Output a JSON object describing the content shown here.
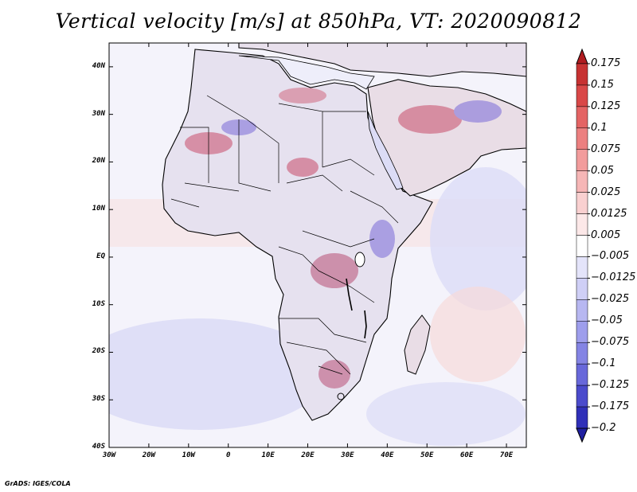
{
  "title": "Vertical velocity [m/s] at 850hPa, VT: 2020090812",
  "footer": "GrADS: IGES/COLA",
  "map": {
    "lon_range": [
      -30,
      75
    ],
    "lat_range": [
      -40,
      45
    ],
    "lat_ticks": [
      {
        "value": 40,
        "label": "40N"
      },
      {
        "value": 30,
        "label": "30N"
      },
      {
        "value": 20,
        "label": "20N"
      },
      {
        "value": 10,
        "label": "10N"
      },
      {
        "value": 0,
        "label": "EQ"
      },
      {
        "value": -10,
        "label": "10S"
      },
      {
        "value": -20,
        "label": "20S"
      },
      {
        "value": -30,
        "label": "30S"
      },
      {
        "value": -40,
        "label": "40S"
      }
    ],
    "lon_ticks": [
      {
        "value": -30,
        "label": "30W"
      },
      {
        "value": -20,
        "label": "20W"
      },
      {
        "value": -10,
        "label": "10W"
      },
      {
        "value": 0,
        "label": "0"
      },
      {
        "value": 10,
        "label": "10E"
      },
      {
        "value": 20,
        "label": "20E"
      },
      {
        "value": 30,
        "label": "30E"
      },
      {
        "value": 40,
        "label": "40E"
      },
      {
        "value": 50,
        "label": "50E"
      },
      {
        "value": 60,
        "label": "60E"
      },
      {
        "value": 70,
        "label": "70E"
      }
    ]
  },
  "colorbar": {
    "levels": [
      "0.175",
      "0.15",
      "0.125",
      "0.1",
      "0.075",
      "0.05",
      "0.025",
      "0.0125",
      "0.005",
      "−0.005",
      "−0.0125",
      "−0.025",
      "−0.05",
      "−0.075",
      "−0.1",
      "−0.125",
      "−0.175",
      "−0.2"
    ],
    "colors": [
      "#b01c20",
      "#c73232",
      "#d94848",
      "#e46464",
      "#ec8080",
      "#f29c9c",
      "#f6b6b6",
      "#f9d0d0",
      "#fce8e8",
      "#ffffff",
      "#e4e4fa",
      "#cfcff6",
      "#b7b7f1",
      "#9e9eec",
      "#8484e4",
      "#6868da",
      "#4b4bcc",
      "#3030b8",
      "#1f1fa0"
    ]
  },
  "icons": {
    "colorbar_top": "triangle-up-icon",
    "colorbar_bottom": "triangle-down-icon"
  }
}
